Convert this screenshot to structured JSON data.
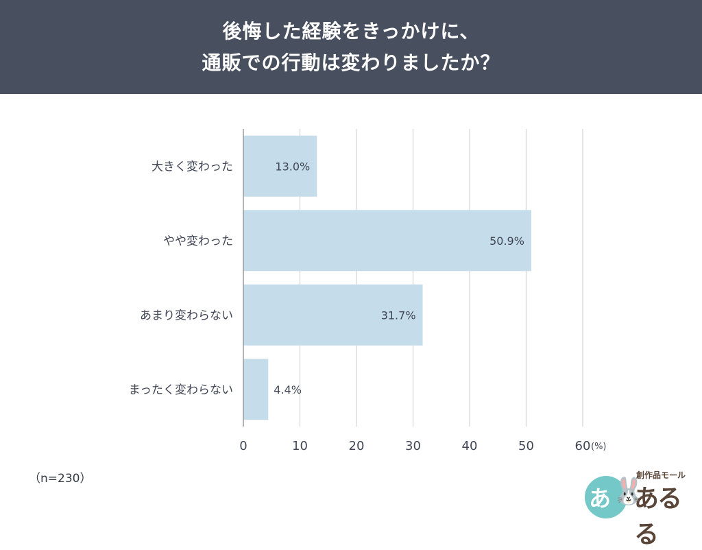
{
  "header": {
    "title_line1": "後悔した経験をきっかけに、",
    "title_line2": "通販での行動は変わりましたか？"
  },
  "chart_data": {
    "type": "bar",
    "orientation": "horizontal",
    "categories": [
      "大きく変わった",
      "やや変わった",
      "あまり変わらない",
      "まったく変わらない"
    ],
    "values": [
      13.0,
      50.9,
      31.7,
      4.4
    ],
    "value_labels": [
      "13.0%",
      "50.9%",
      "31.7%",
      "4.4%"
    ],
    "x_ticks": [
      "0",
      "10",
      "20",
      "30",
      "40",
      "50",
      "60"
    ],
    "x_unit": "(%)",
    "xlim": [
      0,
      60
    ],
    "grid": true,
    "colors": {
      "bar": "#c5dcea",
      "grid": "#d4d4d4",
      "axis": "#9a9a9a",
      "text": "#404654"
    }
  },
  "footer": {
    "sample_size": "（n=230）"
  },
  "logo": {
    "circle_text": "あ",
    "rabbit_icon": "rabbit-icon",
    "tagline": "創作品モール",
    "name": "あるる"
  }
}
